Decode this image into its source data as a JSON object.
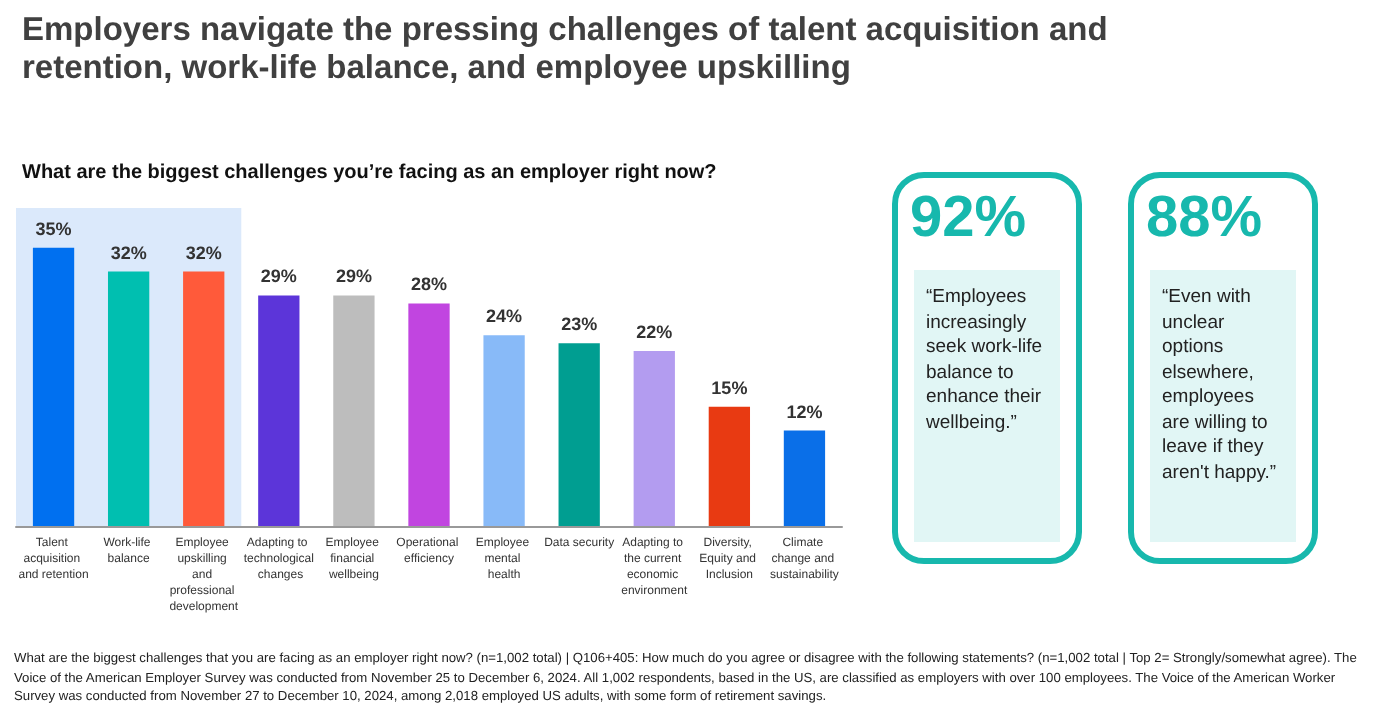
{
  "chart_data": {
    "type": "bar",
    "title": "Employers navigate the pressing challenges of talent acquisition and retention, work-life balance, and employee upskilling",
    "subtitle": "What are the biggest challenges you’re facing as an employer right now?",
    "categories": [
      "Talent acquisition and retention",
      "Work-life balance",
      "Employee upskilling and professional development",
      "Adapting to technological changes",
      "Employee financial wellbeing",
      "Operational efficiency",
      "Employee mental health",
      "Data security",
      "Adapting to the current economic environment",
      "Diversity, Equity and Inclusion",
      "Climate change and sustainability"
    ],
    "values": [
      35,
      32,
      32,
      29,
      29,
      28,
      24,
      23,
      22,
      15,
      12
    ],
    "value_labels": [
      "35%",
      "32%",
      "32%",
      "29%",
      "29%",
      "28%",
      "24%",
      "23%",
      "22%",
      "15%",
      "12%"
    ],
    "colors": [
      "#0070f0",
      "#00bfb0",
      "#ff5a3a",
      "#5c35d9",
      "#bdbdbd",
      "#c145e0",
      "#88baf8",
      "#009e91",
      "#b39cf0",
      "#e83a12",
      "#0a6fe8"
    ],
    "bands": [
      {
        "axis": "x",
        "from": "Talent acquisition and retention",
        "to": "Employee upskilling and professional development",
        "color": "#dbe9fb"
      }
    ],
    "annotations": [
      "92%",
      "“Employees increasingly seek work-life balance to enhance their wellbeing.”",
      "88%",
      "“Even with unclear options elsewhere, employees are willing to leave if they aren't happy.”",
      "What are the biggest challenges that you are facing as an employer right now? (n=1,002 total) | Q106+405: How much do you agree or disagree with the following statements? (n=1,002 total | Top 2= Strongly/somewhat agree). The Voice of the American Employer Survey was conducted from November 25 to December 6, 2024. All 1,002 respondents, based in the US, are classified as employers with over 100 employees. The Voice of the American Worker Survey was conducted from November 27 to December 10, 2024, among 2,018 employed US adults, with some form of retirement savings."
    ]
  }
}
